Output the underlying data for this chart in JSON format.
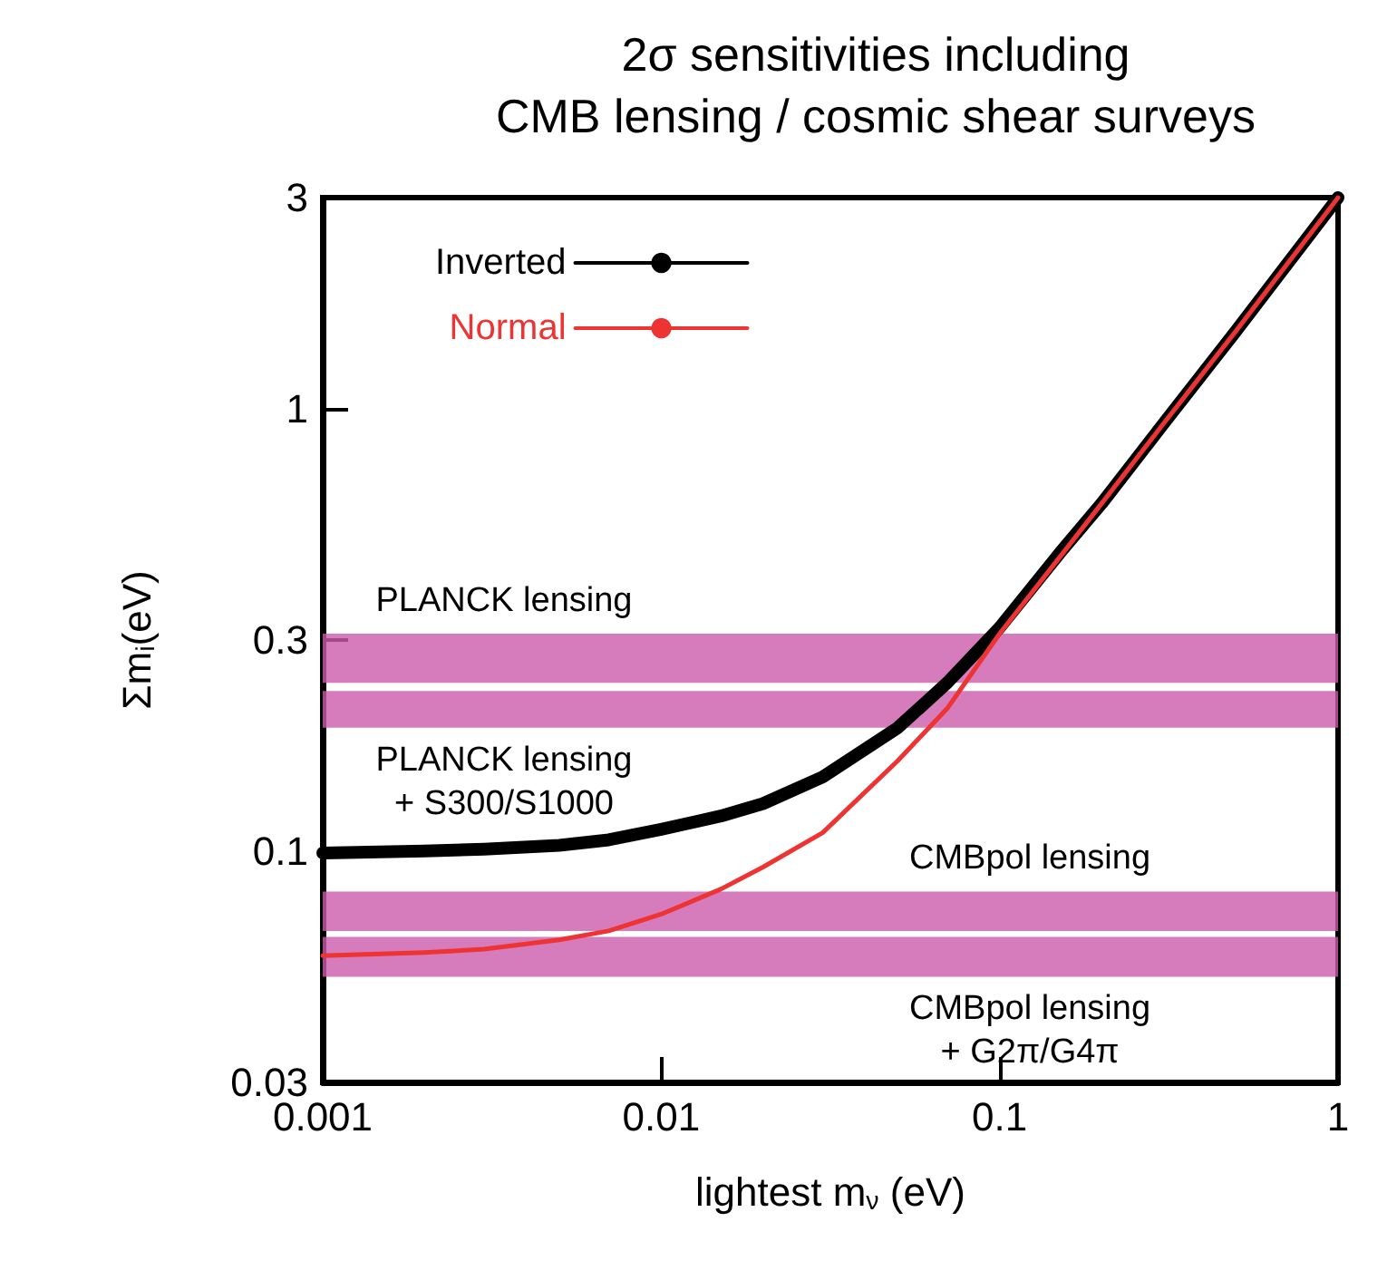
{
  "chart_data": {
    "type": "line",
    "title": "2σ sensitivities including\nCMB lensing / cosmic shear surveys",
    "xlabel": "lightest m$_{ν}$ (eV)",
    "ylabel": "Σm$_{i}$(eV)",
    "x": [
      0.001,
      0.002,
      0.003,
      0.005,
      0.007,
      0.01,
      0.015,
      0.02,
      0.03,
      0.05,
      0.07,
      0.1,
      0.15,
      0.2,
      0.3,
      0.5,
      0.7,
      1
    ],
    "series": [
      {
        "name": "Inverted",
        "color": "#000000",
        "values": [
          0.099,
          0.1,
          0.101,
          0.103,
          0.106,
          0.112,
          0.12,
          0.128,
          0.147,
          0.19,
          0.24,
          0.32,
          0.47,
          0.61,
          0.91,
          1.5,
          2.1,
          3.0
        ]
      },
      {
        "name": "Normal",
        "color": "#ee3333",
        "values": [
          0.058,
          0.059,
          0.06,
          0.063,
          0.066,
          0.072,
          0.082,
          0.092,
          0.11,
          0.16,
          0.21,
          0.31,
          0.46,
          0.61,
          0.91,
          1.5,
          2.1,
          3.0
        ]
      }
    ],
    "bands": [
      {
        "axis": "y",
        "from": 0.24,
        "to": 0.31,
        "label": "PLANCK lensing",
        "color": "#cc5aaa"
      },
      {
        "axis": "y",
        "from": 0.19,
        "to": 0.23,
        "label": "PLANCK lensing\n+ S300/S1000",
        "color": "#cc5aaa"
      },
      {
        "axis": "y",
        "from": 0.066,
        "to": 0.081,
        "label": "CMBpol lensing",
        "color": "#cc5aaa"
      },
      {
        "axis": "y",
        "from": 0.052,
        "to": 0.064,
        "label": "CMBpol lensing\n+ G2π/G4π",
        "color": "#cc5aaa"
      }
    ],
    "xlim": [
      0.001,
      1
    ],
    "xticks": [
      0.001,
      0.01,
      0.1,
      1
    ],
    "ylim": [
      0.03,
      3
    ],
    "yticks": [
      0.03,
      0.1,
      0.3,
      1,
      3
    ],
    "log": "xy",
    "grid": false,
    "legend": "top left",
    "marker": "none",
    "line_style": "solid"
  }
}
